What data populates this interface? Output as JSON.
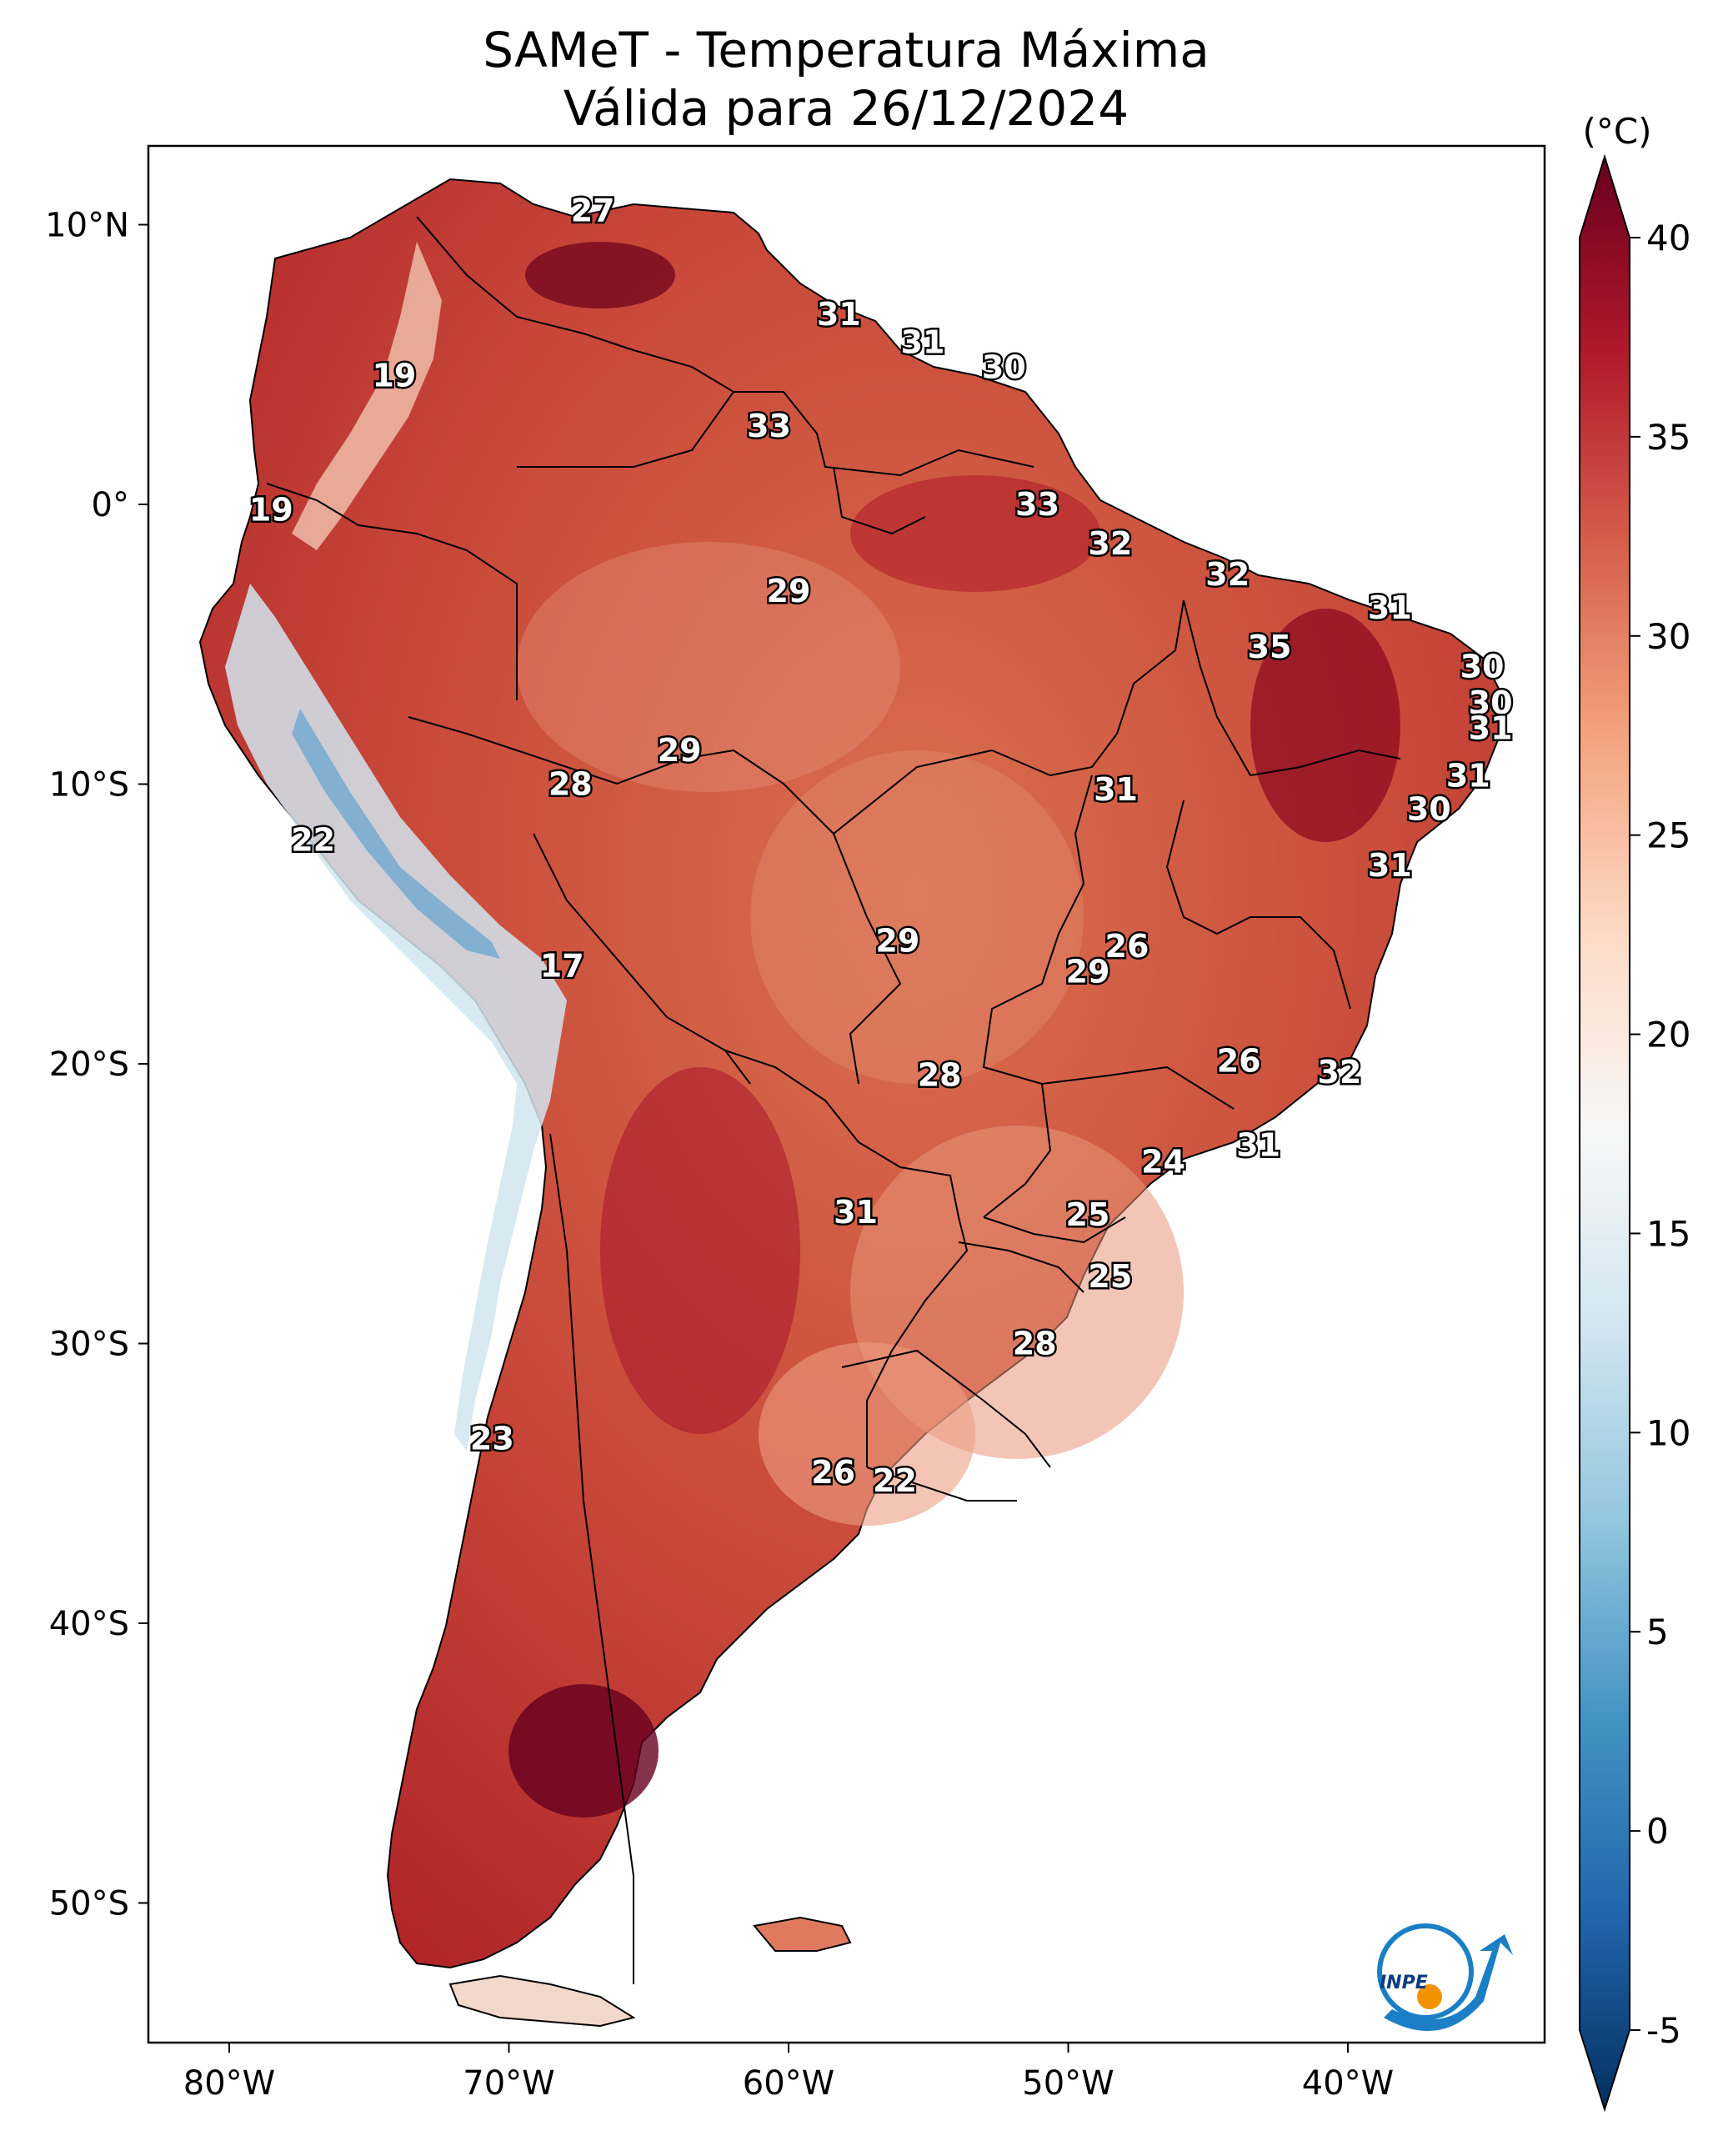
{
  "title": {
    "line1": "SAMeT - Temperatura Máxima",
    "line2": "Válida para 26/12/2024"
  },
  "axes": {
    "lon_ticks": [
      "80°W",
      "70°W",
      "60°W",
      "50°W",
      "40°W"
    ],
    "lat_ticks": [
      "10°N",
      "0°",
      "10°S",
      "20°S",
      "30°S",
      "40°S",
      "50°S"
    ]
  },
  "colorbar": {
    "unit": "(°C)",
    "ticks": [
      "40",
      "35",
      "30",
      "25",
      "20",
      "15",
      "10",
      "5",
      "0",
      "-5"
    ],
    "range": [
      -5,
      40
    ],
    "colors": [
      "#053061",
      "#2166ac",
      "#4393c3",
      "#92c5de",
      "#d1e5f0",
      "#f7f7f7",
      "#fddbc7",
      "#f4a582",
      "#d6604d",
      "#b2182b",
      "#67001f"
    ]
  },
  "cities": [
    {
      "value": "27",
      "lon": -67.0,
      "lat": 10.5
    },
    {
      "value": "19",
      "lon": -74.1,
      "lat": 4.6
    },
    {
      "value": "19",
      "lon": -78.5,
      "lat": -0.2
    },
    {
      "value": "31",
      "lon": -58.2,
      "lat": 6.8
    },
    {
      "value": "31",
      "lon": -55.2,
      "lat": 5.8
    },
    {
      "value": "30",
      "lon": -52.3,
      "lat": 4.9
    },
    {
      "value": "33",
      "lon": -60.7,
      "lat": 2.8
    },
    {
      "value": "33",
      "lon": -51.1,
      "lat": 0.0
    },
    {
      "value": "32",
      "lon": -48.5,
      "lat": -1.4
    },
    {
      "value": "32",
      "lon": -44.3,
      "lat": -2.5
    },
    {
      "value": "29",
      "lon": -60.0,
      "lat": -3.1
    },
    {
      "value": "31",
      "lon": -38.5,
      "lat": -3.7
    },
    {
      "value": "35",
      "lon": -42.8,
      "lat": -5.1
    },
    {
      "value": "30",
      "lon": -35.2,
      "lat": -5.8
    },
    {
      "value": "30",
      "lon": -34.9,
      "lat": -7.1
    },
    {
      "value": "31",
      "lon": -34.9,
      "lat": -8.0
    },
    {
      "value": "31",
      "lon": -35.7,
      "lat": -9.7
    },
    {
      "value": "30",
      "lon": -37.1,
      "lat": -10.9
    },
    {
      "value": "29",
      "lon": -63.9,
      "lat": -8.8
    },
    {
      "value": "28",
      "lon": -67.8,
      "lat": -10.0
    },
    {
      "value": "31",
      "lon": -48.3,
      "lat": -10.2
    },
    {
      "value": "31",
      "lon": -38.5,
      "lat": -12.9
    },
    {
      "value": "22",
      "lon": -77.0,
      "lat": -12.0
    },
    {
      "value": "17",
      "lon": -68.1,
      "lat": -16.5
    },
    {
      "value": "29",
      "lon": -56.1,
      "lat": -15.6
    },
    {
      "value": "26",
      "lon": -47.9,
      "lat": -15.8
    },
    {
      "value": "29",
      "lon": -49.3,
      "lat": -16.7
    },
    {
      "value": "26",
      "lon": -43.9,
      "lat": -19.9
    },
    {
      "value": "32",
      "lon": -40.3,
      "lat": -20.3
    },
    {
      "value": "28",
      "lon": -54.6,
      "lat": -20.4
    },
    {
      "value": "31",
      "lon": -43.2,
      "lat": -22.9
    },
    {
      "value": "24",
      "lon": -46.6,
      "lat": -23.5
    },
    {
      "value": "31",
      "lon": -57.6,
      "lat": -25.3
    },
    {
      "value": "25",
      "lon": -49.3,
      "lat": -25.4
    },
    {
      "value": "25",
      "lon": -48.5,
      "lat": -27.6
    },
    {
      "value": "28",
      "lon": -51.2,
      "lat": -30.0
    },
    {
      "value": "23",
      "lon": -70.6,
      "lat": -33.4
    },
    {
      "value": "26",
      "lon": -58.4,
      "lat": -34.6
    },
    {
      "value": "22",
      "lon": -56.2,
      "lat": -34.9
    }
  ],
  "logo": {
    "text": "INPE"
  }
}
